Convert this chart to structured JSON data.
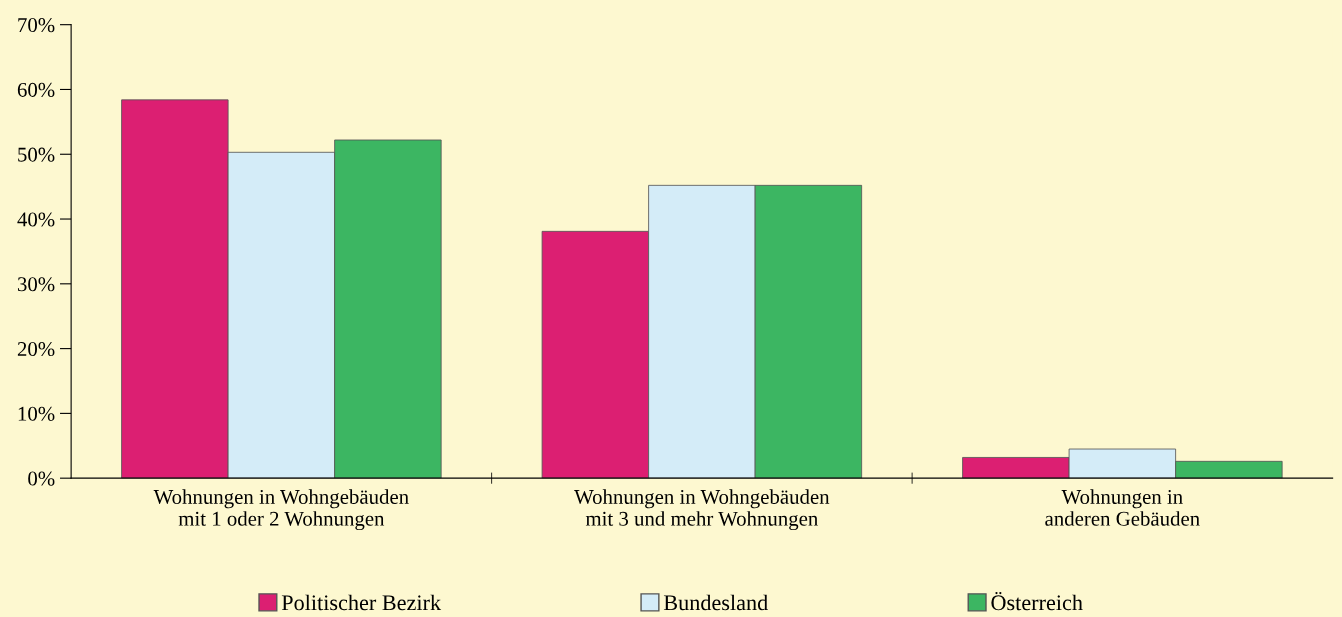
{
  "chart_data": {
    "type": "bar",
    "categories": [
      "Wohnungen in Wohngebäuden\nmit 1 oder 2 Wohnungen",
      "Wohnungen in Wohngebäuden\nmit 3 und mehr Wohnungen",
      "Wohnungen in\nanderen Gebäuden"
    ],
    "series": [
      {
        "name": "Politischer Bezirk",
        "color": "#dc1f72",
        "values": [
          58.4,
          38.1,
          3.2
        ]
      },
      {
        "name": "Bundesland",
        "color": "#d4ecf8",
        "values": [
          50.3,
          45.2,
          4.5
        ]
      },
      {
        "name": "Österreich",
        "color": "#3cb662",
        "values": [
          52.2,
          45.2,
          2.6
        ]
      }
    ],
    "ylim": [
      0,
      70
    ],
    "yticks": [
      {
        "value": 0,
        "label": "0%"
      },
      {
        "value": 10,
        "label": "10%"
      },
      {
        "value": 20,
        "label": "20%"
      },
      {
        "value": 30,
        "label": "30%"
      },
      {
        "value": 40,
        "label": "40%"
      },
      {
        "value": 50,
        "label": "50%"
      },
      {
        "value": 60,
        "label": "60%"
      },
      {
        "value": 70,
        "label": "70%"
      }
    ],
    "grid": false,
    "legend": "bottom"
  }
}
